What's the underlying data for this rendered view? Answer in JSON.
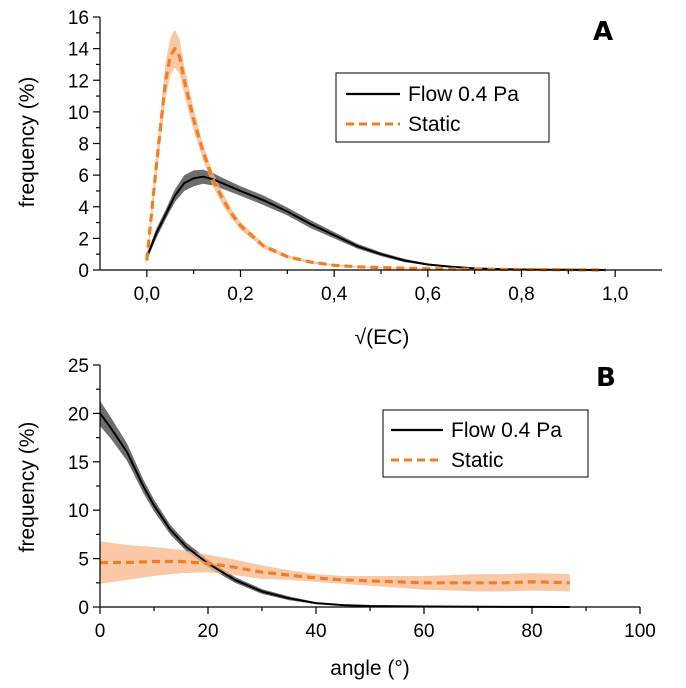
{
  "chart_data": [
    {
      "panel": "A",
      "type": "line",
      "xlabel": "√(EC)",
      "ylabel": "frequency (%)",
      "xlim": [
        -0.1,
        1.1
      ],
      "ylim": [
        0,
        16
      ],
      "xticks": [
        "0,0",
        "0,2",
        "0,4",
        "0,6",
        "0,8",
        "1,0"
      ],
      "yticks": [
        "0",
        "2",
        "4",
        "6",
        "8",
        "10",
        "12",
        "14",
        "16"
      ],
      "legend_position": "top-right",
      "grid": false,
      "series": [
        {
          "name": "Flow 0.4 Pa",
          "style": "solid",
          "color": "#000000",
          "band_color": "#555555",
          "x": [
            0.0,
            0.02,
            0.04,
            0.06,
            0.08,
            0.1,
            0.12,
            0.14,
            0.16,
            0.2,
            0.25,
            0.3,
            0.35,
            0.4,
            0.45,
            0.5,
            0.55,
            0.6,
            0.65,
            0.7,
            0.75,
            0.8,
            0.85,
            0.9,
            0.95,
            0.98
          ],
          "y": [
            0.8,
            2.3,
            3.5,
            4.7,
            5.5,
            5.8,
            5.9,
            5.75,
            5.5,
            5.0,
            4.4,
            3.7,
            2.9,
            2.2,
            1.5,
            1.0,
            0.6,
            0.35,
            0.2,
            0.1,
            0.06,
            0.03,
            0.02,
            0.01,
            0.0,
            0.0
          ],
          "band": [
            0.2,
            0.3,
            0.3,
            0.4,
            0.5,
            0.5,
            0.45,
            0.4,
            0.35,
            0.3,
            0.3,
            0.25,
            0.25,
            0.2,
            0.15,
            0.12,
            0.1,
            0.06,
            0.04,
            0.02,
            0.01,
            0.01,
            0.0,
            0.0,
            0.0,
            0.0
          ]
        },
        {
          "name": "Static",
          "style": "dashed",
          "color": "#F07F22",
          "band_color": "#F5B68A",
          "x": [
            0.0,
            0.02,
            0.04,
            0.05,
            0.06,
            0.07,
            0.08,
            0.1,
            0.12,
            0.14,
            0.16,
            0.18,
            0.2,
            0.25,
            0.3,
            0.35,
            0.4,
            0.45,
            0.5,
            0.6,
            0.7,
            0.8,
            0.9,
            0.98
          ],
          "y": [
            0.6,
            6.5,
            12.0,
            13.5,
            14.0,
            13.5,
            12.0,
            9.5,
            7.5,
            5.8,
            4.6,
            3.6,
            2.8,
            1.5,
            0.85,
            0.5,
            0.3,
            0.2,
            0.15,
            0.08,
            0.05,
            0.03,
            0.01,
            0.0
          ],
          "band": [
            0.3,
            0.8,
            1.1,
            1.2,
            1.2,
            1.1,
            0.9,
            0.7,
            0.5,
            0.45,
            0.4,
            0.3,
            0.25,
            0.15,
            0.1,
            0.08,
            0.05,
            0.04,
            0.03,
            0.02,
            0.01,
            0.0,
            0.0,
            0.0
          ]
        }
      ]
    },
    {
      "panel": "B",
      "type": "line",
      "xlabel": "angle (°)",
      "ylabel": "frequency (%)",
      "xlim": [
        0,
        100
      ],
      "ylim": [
        0,
        25
      ],
      "xticks": [
        "0",
        "20",
        "40",
        "60",
        "80",
        "100"
      ],
      "yticks": [
        "0",
        "5",
        "10",
        "15",
        "20",
        "25"
      ],
      "legend_position": "top-right",
      "grid": false,
      "series": [
        {
          "name": "Flow 0.4 Pa",
          "style": "solid",
          "color": "#000000",
          "band_color": "#555555",
          "x": [
            0,
            2,
            5,
            8,
            10,
            13,
            16,
            20,
            25,
            30,
            35,
            40,
            45,
            50,
            60,
            70,
            80,
            87
          ],
          "y": [
            20.0,
            18.5,
            16.0,
            12.5,
            10.5,
            8.0,
            6.2,
            4.5,
            2.8,
            1.6,
            0.9,
            0.4,
            0.2,
            0.1,
            0.05,
            0.02,
            0.01,
            0.0
          ],
          "band": [
            1.3,
            1.1,
            0.9,
            0.7,
            0.6,
            0.5,
            0.45,
            0.4,
            0.3,
            0.25,
            0.2,
            0.1,
            0.05,
            0.03,
            0.02,
            0.01,
            0.0,
            0.0
          ]
        },
        {
          "name": "Static",
          "style": "dashed",
          "color": "#F07F22",
          "band_color": "#F5B68A",
          "x": [
            0,
            5,
            10,
            15,
            20,
            25,
            30,
            35,
            40,
            45,
            50,
            55,
            60,
            65,
            70,
            75,
            80,
            87
          ],
          "y": [
            4.6,
            4.6,
            4.7,
            4.7,
            4.5,
            4.1,
            3.6,
            3.3,
            3.0,
            2.8,
            2.7,
            2.6,
            2.5,
            2.5,
            2.5,
            2.5,
            2.6,
            2.5
          ],
          "band": [
            2.2,
            1.8,
            1.5,
            1.2,
            0.9,
            0.8,
            0.7,
            0.5,
            0.4,
            0.4,
            0.5,
            0.6,
            0.7,
            0.8,
            0.9,
            0.9,
            0.9,
            0.9
          ]
        }
      ]
    }
  ]
}
